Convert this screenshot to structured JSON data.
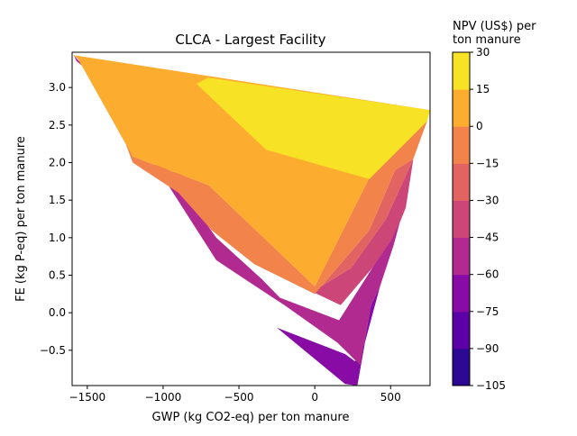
{
  "chart_data": {
    "type": "filled-contour",
    "title": "CLCA - Largest Facility",
    "xlabel": "GWP (kg CO2-eq) per ton manure",
    "ylabel": "FE (kg P-eq) per ton manure",
    "xlim": [
      -1600,
      760
    ],
    "ylim": [
      -0.97,
      3.47
    ],
    "xticks": [
      -1500,
      -1000,
      -500,
      0,
      500
    ],
    "xtick_labels": [
      "−1500",
      "−1000",
      "−500",
      "0",
      "500"
    ],
    "yticks": [
      -0.5,
      0.0,
      0.5,
      1.0,
      1.5,
      2.0,
      2.5,
      3.0
    ],
    "ytick_labels": [
      "−0.5",
      "0.0",
      "0.5",
      "1.0",
      "1.5",
      "2.0",
      "2.5",
      "3.0"
    ],
    "colorbar": {
      "label": "NPV (US$) per ton manure",
      "levels": [
        -105,
        -90,
        -75,
        -60,
        -45,
        -30,
        -15,
        0,
        15,
        30
      ],
      "tick_labels": [
        "−105",
        "−90",
        "−75",
        "−60",
        "−45",
        "−30",
        "−15",
        "0",
        "15",
        "30"
      ],
      "colors": [
        "#2d0893",
        "#5c01a6",
        "#870ba4",
        "#b12a90",
        "#cc4778",
        "#e16462",
        "#f2844b",
        "#fcad30",
        "#f7e225"
      ]
    },
    "domain_hull": [
      [
        -1590,
        3.43
      ],
      [
        760,
        2.7
      ],
      [
        280,
        -0.97
      ],
      [
        -1590,
        3.43
      ]
    ],
    "bands": [
      {
        "level": "-90 to -75",
        "color": "#5c01a6",
        "polygon": [
          [
            240,
            -0.75
          ],
          [
            330,
            -0.4
          ],
          [
            280,
            -0.97
          ]
        ]
      },
      {
        "level": "-75 to -60",
        "color": "#870ba4",
        "polygon": [
          [
            -250,
            -0.2
          ],
          [
            200,
            -0.95
          ],
          [
            280,
            -0.97
          ],
          [
            330,
            -0.4
          ],
          [
            430,
            0.35
          ],
          [
            370,
            0.1
          ],
          [
            300,
            -0.7
          ],
          [
            200,
            -0.55
          ]
        ]
      },
      {
        "level": "-60 to -45",
        "color": "#b12a90",
        "polygon": [
          [
            -1590,
            3.43
          ],
          [
            -1330,
            2.85
          ],
          [
            -650,
            0.7
          ],
          [
            -350,
            0.3
          ],
          [
            -200,
            0.1
          ],
          [
            150,
            -0.4
          ],
          [
            300,
            -0.7
          ],
          [
            370,
            0.1
          ],
          [
            430,
            0.35
          ],
          [
            520,
            0.9
          ],
          [
            560,
            1.2
          ],
          [
            380,
            0.6
          ],
          [
            160,
            -0.1
          ],
          [
            -230,
            0.2
          ],
          [
            -350,
            0.45
          ],
          [
            -650,
            1.0
          ],
          [
            -1350,
            3.0
          ],
          [
            -1570,
            3.35
          ]
        ]
      },
      {
        "level": "-45 to -30",
        "color": "#cc4778",
        "polygon": [
          [
            -1570,
            3.35
          ],
          [
            -1350,
            3.0
          ],
          [
            -1290,
            2.9
          ],
          [
            -680,
            1.2
          ],
          [
            -350,
            0.6
          ],
          [
            170,
            0.1
          ],
          [
            380,
            0.6
          ],
          [
            500,
            0.95
          ],
          [
            560,
            1.2
          ],
          [
            600,
            1.4
          ],
          [
            650,
            2.05
          ],
          [
            470,
            1.25
          ],
          [
            240,
            0.6
          ],
          [
            0,
            0.3
          ],
          [
            -450,
            0.8
          ],
          [
            -700,
            1.35
          ],
          [
            -1300,
            3.1
          ],
          [
            -1500,
            3.3
          ]
        ]
      },
      {
        "level": "-30 to -15",
        "color": "#e16462",
        "polygon": [
          [
            -1500,
            3.3
          ],
          [
            -1300,
            3.1
          ],
          [
            -1200,
            2.0
          ],
          [
            -880,
            1.6
          ],
          [
            -650,
            1.3
          ],
          [
            -450,
            0.8
          ],
          [
            0,
            0.3
          ],
          [
            240,
            0.6
          ],
          [
            470,
            1.25
          ],
          [
            650,
            2.05
          ],
          [
            530,
            1.9
          ],
          [
            360,
            1.1
          ],
          [
            0,
            0.25
          ],
          [
            -400,
            0.65
          ],
          [
            -680,
            1.1
          ],
          [
            -900,
            1.6
          ],
          [
            -1200,
            2.0
          ],
          [
            -1440,
            3.3
          ]
        ]
      },
      {
        "level": "-15 to 0",
        "color": "#f2844b",
        "polygon": [
          [
            -1440,
            3.3
          ],
          [
            -1200,
            2.0
          ],
          [
            -900,
            1.6
          ],
          [
            -680,
            1.1
          ],
          [
            -400,
            0.65
          ],
          [
            0,
            0.25
          ],
          [
            360,
            1.1
          ],
          [
            530,
            1.9
          ],
          [
            650,
            2.05
          ],
          [
            740,
            2.55
          ],
          [
            580,
            2.4
          ],
          [
            360,
            1.8
          ],
          [
            0,
            0.35
          ],
          [
            -700,
            1.7
          ],
          [
            -1200,
            2.08
          ],
          [
            -1560,
            3.38
          ]
        ]
      },
      {
        "level": "0 to 15",
        "color": "#fcad30",
        "polygon": [
          [
            -1590,
            3.43
          ],
          [
            760,
            2.7
          ],
          [
            740,
            2.55
          ],
          [
            580,
            2.4
          ],
          [
            360,
            1.8
          ],
          [
            0,
            0.35
          ],
          [
            -700,
            1.7
          ],
          [
            -1200,
            2.08
          ],
          [
            -1560,
            3.38
          ]
        ]
      },
      {
        "level": "15 to 30",
        "color": "#f7e225",
        "polygon": [
          [
            -700,
            3.13
          ],
          [
            760,
            2.7
          ],
          [
            740,
            2.55
          ],
          [
            360,
            1.78
          ],
          [
            -320,
            2.17
          ],
          [
            -780,
            3.05
          ]
        ]
      }
    ]
  }
}
